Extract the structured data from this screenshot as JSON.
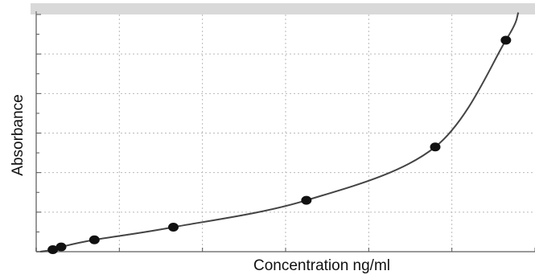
{
  "chart_data": {
    "type": "scatter",
    "title": "",
    "xlabel": "Concentration ng/ml",
    "ylabel": "Absorbance",
    "xlim": [
      0,
      12
    ],
    "ylim": [
      0,
      6
    ],
    "grid": true,
    "legend": "none",
    "series": [
      {
        "x": [
          0.4,
          0.6,
          1.4,
          3.3,
          6.5,
          9.6,
          11.3
        ],
        "y": [
          0.05,
          0.12,
          0.3,
          0.62,
          1.3,
          2.65,
          5.35
        ]
      }
    ],
    "fit_curve": "smooth",
    "colors": {
      "points": "#111111",
      "curve": "#444444",
      "grid": "#b9b9b9",
      "frame": "#9a9a9a",
      "top_band": "#d9d9d9"
    }
  }
}
